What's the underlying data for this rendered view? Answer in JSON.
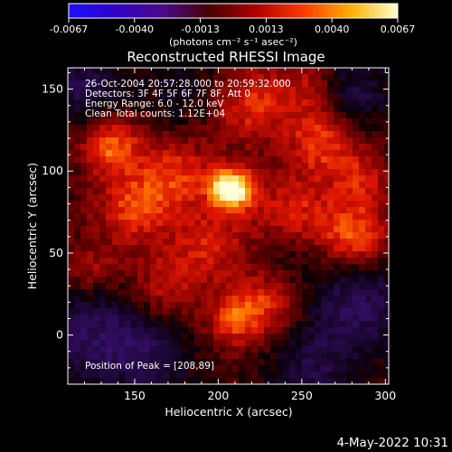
{
  "colorbar": {
    "tick_labels": [
      "-0.0067",
      "-0.0040",
      "-0.0013",
      "0.0013",
      "0.0040",
      "0.0067"
    ],
    "units_label": "(photons cm⁻² s⁻¹ asec⁻²)",
    "colors": [
      "#1a10ff",
      "#3300c8",
      "#4a0a8a",
      "#4a0000",
      "#b00000",
      "#ff3a00",
      "#ffb000",
      "#ffffd0"
    ]
  },
  "footer": {
    "timestamp": "4-May-2022 10:31"
  },
  "chart_data": {
    "type": "heatmap",
    "title": "Reconstructed RHESSI Image",
    "xlabel": "Heliocentric X (arcsec)",
    "ylabel": "Heliocentric Y (arcsec)",
    "xlim": [
      110,
      302
    ],
    "ylim": [
      -30,
      163
    ],
    "xticks": [
      150,
      200,
      250,
      300
    ],
    "yticks": [
      0,
      50,
      100,
      150
    ],
    "colorbar_range": [
      -0.0067,
      0.0067
    ],
    "annotations": [
      "26-Oct-2004 20:57:28.000 to 20:59:32.000",
      "Detectors: 3F 4F 5F 6F 7F 8F, Att 0",
      "Energy Range: 6.0 - 12.0 keV",
      "Clean     Total counts: 1.12E+04"
    ],
    "peak_label": "Position of Peak = [208,89]",
    "peak": {
      "x": 208,
      "y": 89
    },
    "sources": [
      {
        "x": 208,
        "y": 89,
        "amp": 1.0,
        "width": 9
      },
      {
        "x": 136,
        "y": 116,
        "amp": 0.55,
        "width": 12
      },
      {
        "x": 262,
        "y": 118,
        "amp": 0.45,
        "width": 14
      },
      {
        "x": 282,
        "y": 60,
        "amp": 0.55,
        "width": 14
      },
      {
        "x": 150,
        "y": 78,
        "amp": 0.45,
        "width": 16
      },
      {
        "x": 175,
        "y": 98,
        "amp": 0.4,
        "width": 16
      },
      {
        "x": 195,
        "y": 55,
        "amp": 0.35,
        "width": 16
      },
      {
        "x": 245,
        "y": 75,
        "amp": 0.38,
        "width": 18
      },
      {
        "x": 220,
        "y": 140,
        "amp": 0.4,
        "width": 16
      },
      {
        "x": 255,
        "y": 150,
        "amp": 0.3,
        "width": 14
      },
      {
        "x": 210,
        "y": 10,
        "amp": 0.45,
        "width": 12
      },
      {
        "x": 230,
        "y": 20,
        "amp": 0.35,
        "width": 14
      },
      {
        "x": 168,
        "y": 30,
        "amp": 0.3,
        "width": 14
      },
      {
        "x": 125,
        "y": 40,
        "amp": 0.25,
        "width": 12
      },
      {
        "x": 285,
        "y": 95,
        "amp": 0.35,
        "width": 12
      },
      {
        "x": 120,
        "y": 150,
        "amp": -0.35,
        "width": 16
      },
      {
        "x": 178,
        "y": 150,
        "amp": -0.2,
        "width": 16
      },
      {
        "x": 280,
        "y": 148,
        "amp": -0.35,
        "width": 16
      },
      {
        "x": 125,
        "y": 0,
        "amp": -0.4,
        "width": 22
      },
      {
        "x": 160,
        "y": -15,
        "amp": -0.3,
        "width": 18
      },
      {
        "x": 285,
        "y": 20,
        "amp": -0.4,
        "width": 22
      },
      {
        "x": 255,
        "y": -20,
        "amp": -0.3,
        "width": 18
      },
      {
        "x": 240,
        "y": 50,
        "amp": -0.15,
        "width": 14
      }
    ]
  }
}
